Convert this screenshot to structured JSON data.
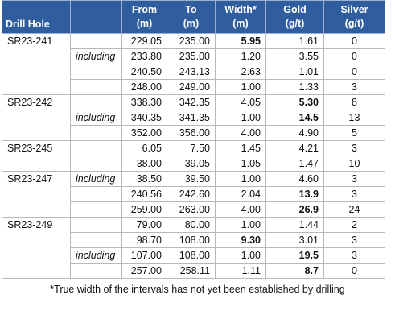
{
  "table": {
    "header": [
      "Drill Hole",
      "From\n(m)",
      "To\n(m)",
      "Width*\n(m)",
      "Gold\n(g/t)",
      "Silver\n(g/t)"
    ],
    "groups": [
      {
        "hole": "SR23-241",
        "rows": [
          {
            "cells": [
              "229.05",
              "235.00",
              "5.95",
              "1.61",
              "0"
            ],
            "bold": [
              2
            ]
          },
          {
            "note": "including",
            "cells": [
              "233.80",
              "235.00",
              "1.20",
              "3.55",
              "0"
            ]
          },
          {
            "cells": [
              "240.50",
              "243.13",
              "2.63",
              "1.01",
              "0"
            ]
          },
          {
            "cells": [
              "248.00",
              "249.00",
              "1.00",
              "1.33",
              "3"
            ]
          }
        ]
      },
      {
        "hole": "SR23-242",
        "rows": [
          {
            "cells": [
              "338.30",
              "342.35",
              "4.05",
              "5.30",
              "8"
            ],
            "bold": [
              3
            ]
          },
          {
            "note": "including",
            "cells": [
              "340.35",
              "341.35",
              "1.00",
              "14.5",
              "13"
            ],
            "bold": [
              3
            ]
          },
          {
            "cells": [
              "352.00",
              "356.00",
              "4.00",
              "4.90",
              "5"
            ]
          }
        ]
      },
      {
        "hole": "SR23-245",
        "rows": [
          {
            "cells": [
              "6.05",
              "7.50",
              "1.45",
              "4.21",
              "3"
            ]
          },
          {
            "cells": [
              "38.00",
              "39.05",
              "1.05",
              "1.47",
              "10"
            ]
          }
        ]
      },
      {
        "hole": "SR23-247",
        "rows": [
          {
            "note": "including",
            "cells": [
              "38.50",
              "39.50",
              "1.00",
              "4.60",
              "3"
            ]
          },
          {
            "cells": [
              "240.56",
              "242.60",
              "2.04",
              "13.9",
              "3"
            ],
            "bold": [
              3
            ]
          },
          {
            "cells": [
              "259.00",
              "263.00",
              "4.00",
              "26.9",
              "24"
            ],
            "bold": [
              3
            ]
          }
        ]
      },
      {
        "hole": "SR23-249",
        "rows": [
          {
            "cells": [
              "79.00",
              "80.00",
              "1.00",
              "1.44",
              "2"
            ]
          },
          {
            "cells": [
              "98.70",
              "108.00",
              "9.30",
              "3.01",
              "3"
            ],
            "bold": [
              2
            ]
          },
          {
            "note": "including",
            "cells": [
              "107.00",
              "108.00",
              "1.00",
              "19.5",
              "3"
            ],
            "bold": [
              3
            ]
          },
          {
            "cells": [
              "257.00",
              "258.11",
              "1.11",
              "8.7",
              "0"
            ],
            "bold": [
              3
            ]
          }
        ]
      }
    ]
  },
  "footnote": "*True width of the intervals has not yet been established by drilling"
}
